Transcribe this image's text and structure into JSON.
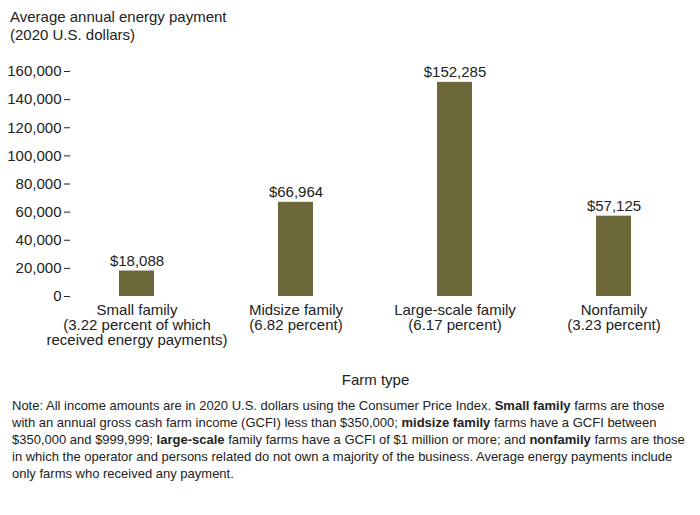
{
  "chart_data": {
    "type": "bar",
    "y_label": "Average annual energy payment\n(2020 U.S. dollars)",
    "x_label": "Farm type",
    "categories": [
      "Small family\n(3.22 percent of which\nreceived energy payments)",
      "Midsize family\n(6.82 percent)",
      "Large-scale family\n(6.17 percent)",
      "Nonfamily\n(3.23 percent)"
    ],
    "values": [
      18088,
      66964,
      152285,
      57125
    ],
    "value_labels": [
      "$18,088",
      "$66,964",
      "$152,285",
      "$57,125"
    ],
    "color": "#6b6739",
    "ylim": [
      0,
      160000
    ],
    "yticks": [
      0,
      {
        "value": 20000,
        "label": "20,000"
      },
      {
        "value": 40000,
        "label": "40,000"
      },
      {
        "value": 60000,
        "label": "60,000"
      },
      {
        "value": 80000,
        "label": "80,000"
      },
      {
        "value": 100000,
        "label": "100,000"
      },
      {
        "value": 120000,
        "label": "120,000"
      },
      {
        "value": 140000,
        "label": "140,000"
      },
      {
        "value": 160000,
        "label": "160,000"
      }
    ],
    "grid": false,
    "data_labels": true,
    "note": [
      "Note: All income amounts are in 2020 U.S. dollars using the Consumer Price Index. ",
      "Small family",
      " farms are those with an annual gross cash farm income (GCFI) less than $350,000; ",
      "midsize family",
      " farms have a GCFI between $350,000 and $999,999; ",
      "large-scale",
      " family farms have a GCFI of $1 million or more; and ",
      "nonfamily",
      " farms are those in which the operator and persons related do not own a majority of the business. Average energy payments include only farms who received any payment."
    ]
  }
}
